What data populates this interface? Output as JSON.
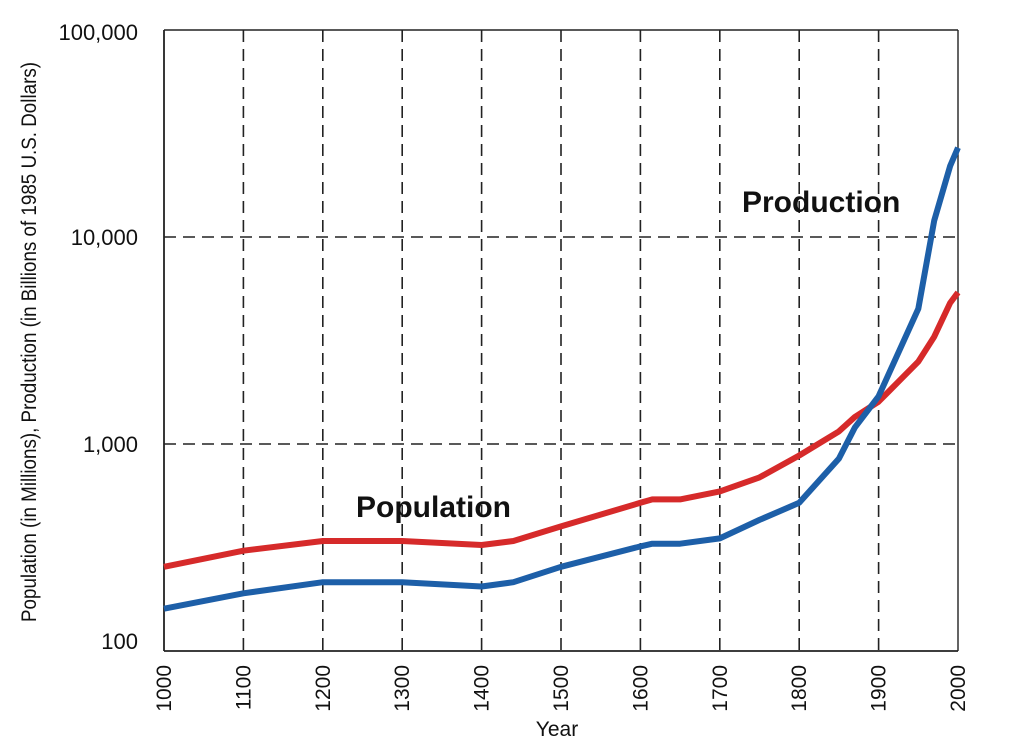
{
  "chart_data": {
    "type": "line",
    "xlabel": "Year",
    "ylabel": "Population (in Millions), Production (in Billions of 1985 U.S. Dollars)",
    "x_ticks": [
      "1000",
      "1100",
      "1200",
      "1300",
      "1400",
      "1500",
      "1600",
      "1700",
      "1800",
      "1900",
      "2000"
    ],
    "y_ticks": [
      "100",
      "1,000",
      "10,000",
      "100,000"
    ],
    "y_scale": "log",
    "xlim": [
      1000,
      2000
    ],
    "ylim": [
      100,
      100000
    ],
    "grid": "dashed",
    "series": [
      {
        "name": "Population",
        "color": "#d62a2a",
        "x": [
          1000,
          1100,
          1200,
          1300,
          1400,
          1440,
          1500,
          1600,
          1615,
          1650,
          1700,
          1750,
          1800,
          1850,
          1870,
          1900,
          1950,
          1970,
          1990,
          2000
        ],
        "y": [
          255,
          305,
          340,
          340,
          325,
          340,
          400,
          520,
          540,
          540,
          590,
          690,
          880,
          1150,
          1350,
          1600,
          2500,
          3300,
          4800,
          5400
        ]
      },
      {
        "name": "Production",
        "color": "#1d5fa8",
        "x": [
          1000,
          1100,
          1200,
          1300,
          1400,
          1440,
          1500,
          1600,
          1615,
          1650,
          1700,
          1750,
          1800,
          1850,
          1870,
          1900,
          1950,
          1970,
          1990,
          2000
        ],
        "y": [
          160,
          190,
          215,
          215,
          205,
          215,
          255,
          320,
          330,
          330,
          350,
          430,
          520,
          850,
          1200,
          1700,
          4500,
          12000,
          22000,
          27000
        ]
      }
    ]
  }
}
